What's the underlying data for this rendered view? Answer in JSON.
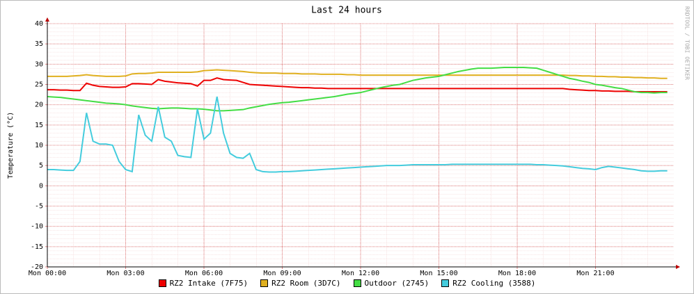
{
  "chart_data": {
    "type": "line",
    "title": "Last 24 hours",
    "y_label": "Temperature (°C)",
    "watermark": "RRDTOOL / TOBI OETIKER",
    "grid": true,
    "xlim": [
      0,
      24
    ],
    "xticks": [
      {
        "value": 0,
        "label": "Mon 00:00"
      },
      {
        "value": 3,
        "label": "Mon 03:00"
      },
      {
        "value": 6,
        "label": "Mon 06:00"
      },
      {
        "value": 9,
        "label": "Mon 09:00"
      },
      {
        "value": 12,
        "label": "Mon 12:00"
      },
      {
        "value": 15,
        "label": "Mon 15:00"
      },
      {
        "value": 18,
        "label": "Mon 18:00"
      },
      {
        "value": 21,
        "label": "Mon 21:00"
      }
    ],
    "ylim": [
      -20,
      40
    ],
    "yticks": [
      -20,
      -15,
      -10,
      -5,
      0,
      5,
      10,
      15,
      20,
      25,
      30,
      35,
      40
    ],
    "x": [
      0,
      0.25,
      0.5,
      0.75,
      1,
      1.25,
      1.5,
      1.75,
      2,
      2.25,
      2.5,
      2.75,
      3,
      3.25,
      3.5,
      3.75,
      4,
      4.25,
      4.5,
      4.75,
      5,
      5.25,
      5.5,
      5.75,
      6,
      6.25,
      6.5,
      6.75,
      7,
      7.25,
      7.5,
      7.75,
      8,
      8.25,
      8.5,
      8.75,
      9,
      9.25,
      9.5,
      9.75,
      10,
      10.25,
      10.5,
      10.75,
      11,
      11.25,
      11.5,
      11.75,
      12,
      12.25,
      12.5,
      12.75,
      13,
      13.25,
      13.5,
      13.75,
      14,
      14.25,
      14.5,
      14.75,
      15,
      15.25,
      15.5,
      15.75,
      16,
      16.25,
      16.5,
      16.75,
      17,
      17.25,
      17.5,
      17.75,
      18,
      18.25,
      18.5,
      18.75,
      19,
      19.25,
      19.5,
      19.75,
      20,
      20.25,
      20.5,
      20.75,
      21,
      21.25,
      21.5,
      21.75,
      22,
      22.25,
      22.5,
      22.75,
      23,
      23.25,
      23.5,
      23.75
    ],
    "series": [
      {
        "name": "RZ2 Intake (7F75)",
        "color": "#ee0000",
        "values": [
          23.7,
          23.7,
          23.6,
          23.6,
          23.5,
          23.5,
          25.3,
          24.8,
          24.5,
          24.4,
          24.3,
          24.3,
          24.4,
          25.2,
          25.2,
          25.1,
          25.0,
          26.2,
          25.8,
          25.6,
          25.4,
          25.3,
          25.2,
          24.6,
          26.0,
          26.0,
          26.6,
          26.2,
          26.1,
          26.0,
          25.5,
          25.0,
          24.9,
          24.8,
          24.7,
          24.6,
          24.5,
          24.4,
          24.3,
          24.2,
          24.2,
          24.1,
          24.1,
          24.0,
          24.0,
          24.0,
          24.0,
          24.0,
          24.0,
          24.0,
          24.0,
          24.0,
          24.0,
          24.0,
          24.0,
          24.0,
          24.0,
          24.0,
          24.0,
          24.0,
          24.0,
          24.0,
          24.0,
          24.0,
          24.0,
          24.0,
          24.0,
          24.0,
          24.0,
          24.0,
          24.0,
          24.0,
          24.0,
          24.0,
          24.0,
          24.0,
          24.0,
          24.0,
          24.0,
          24.0,
          23.8,
          23.7,
          23.6,
          23.5,
          23.5,
          23.4,
          23.4,
          23.3,
          23.3,
          23.3,
          23.2,
          23.2,
          23.2,
          23.2,
          23.2,
          23.2
        ]
      },
      {
        "name": "RZ2 Room (3D7C)",
        "color": "#e0b020",
        "values": [
          27.0,
          27.0,
          27.0,
          27.0,
          27.1,
          27.2,
          27.4,
          27.2,
          27.1,
          27.0,
          27.0,
          27.0,
          27.1,
          27.6,
          27.7,
          27.7,
          27.8,
          28.0,
          28.0,
          28.0,
          28.0,
          28.0,
          28.0,
          28.1,
          28.4,
          28.5,
          28.6,
          28.5,
          28.4,
          28.3,
          28.2,
          28.0,
          27.9,
          27.8,
          27.8,
          27.8,
          27.7,
          27.7,
          27.7,
          27.6,
          27.6,
          27.6,
          27.5,
          27.5,
          27.5,
          27.5,
          27.4,
          27.4,
          27.3,
          27.3,
          27.3,
          27.3,
          27.3,
          27.3,
          27.3,
          27.3,
          27.3,
          27.3,
          27.3,
          27.3,
          27.3,
          27.3,
          27.3,
          27.3,
          27.3,
          27.3,
          27.3,
          27.3,
          27.3,
          27.3,
          27.3,
          27.3,
          27.3,
          27.3,
          27.3,
          27.3,
          27.3,
          27.3,
          27.3,
          27.3,
          27.2,
          27.2,
          27.1,
          27.1,
          27.0,
          27.0,
          26.9,
          26.9,
          26.8,
          26.8,
          26.7,
          26.7,
          26.6,
          26.6,
          26.5,
          26.5
        ]
      },
      {
        "name": "Outdoor (2745)",
        "color": "#44dd44",
        "values": [
          22.0,
          21.9,
          21.8,
          21.6,
          21.4,
          21.2,
          21.0,
          20.8,
          20.6,
          20.4,
          20.3,
          20.2,
          20.0,
          19.7,
          19.5,
          19.3,
          19.1,
          19.0,
          19.1,
          19.2,
          19.2,
          19.1,
          19.0,
          19.0,
          18.9,
          18.7,
          18.5,
          18.5,
          18.6,
          18.7,
          18.8,
          19.2,
          19.5,
          19.8,
          20.1,
          20.3,
          20.5,
          20.6,
          20.8,
          21.0,
          21.2,
          21.4,
          21.6,
          21.8,
          22.0,
          22.3,
          22.6,
          22.8,
          23.0,
          23.4,
          23.8,
          24.2,
          24.5,
          24.8,
          25.0,
          25.5,
          26.0,
          26.3,
          26.6,
          26.8,
          27.0,
          27.4,
          27.8,
          28.2,
          28.5,
          28.8,
          29.0,
          29.0,
          29.0,
          29.1,
          29.2,
          29.2,
          29.2,
          29.2,
          29.1,
          29.0,
          28.5,
          28.0,
          27.5,
          27.0,
          26.5,
          26.2,
          25.8,
          25.5,
          25.0,
          24.8,
          24.5,
          24.2,
          24.0,
          23.6,
          23.2,
          23.0,
          23.0,
          22.9,
          23.0,
          23.0
        ]
      },
      {
        "name": "RZ2 Cooling (3588)",
        "color": "#44ccdd",
        "values": [
          4.0,
          4.0,
          3.9,
          3.8,
          3.8,
          6.0,
          18.0,
          11.0,
          10.3,
          10.3,
          10.0,
          6.0,
          4.0,
          3.5,
          17.5,
          12.5,
          11.0,
          19.5,
          12.0,
          11.0,
          7.5,
          7.2,
          7.0,
          19.0,
          11.5,
          13.0,
          22.0,
          13.0,
          8.0,
          7.0,
          6.8,
          8.0,
          4.0,
          3.5,
          3.4,
          3.4,
          3.5,
          3.5,
          3.6,
          3.7,
          3.8,
          3.9,
          4.0,
          4.1,
          4.2,
          4.3,
          4.4,
          4.5,
          4.6,
          4.7,
          4.8,
          4.9,
          5.0,
          5.0,
          5.0,
          5.1,
          5.2,
          5.2,
          5.2,
          5.2,
          5.2,
          5.2,
          5.3,
          5.3,
          5.3,
          5.3,
          5.3,
          5.3,
          5.3,
          5.3,
          5.3,
          5.3,
          5.3,
          5.3,
          5.3,
          5.2,
          5.2,
          5.1,
          5.0,
          4.9,
          4.7,
          4.5,
          4.3,
          4.2,
          4.0,
          4.5,
          4.8,
          4.6,
          4.4,
          4.2,
          4.0,
          3.7,
          3.6,
          3.6,
          3.7,
          3.7
        ]
      }
    ]
  }
}
